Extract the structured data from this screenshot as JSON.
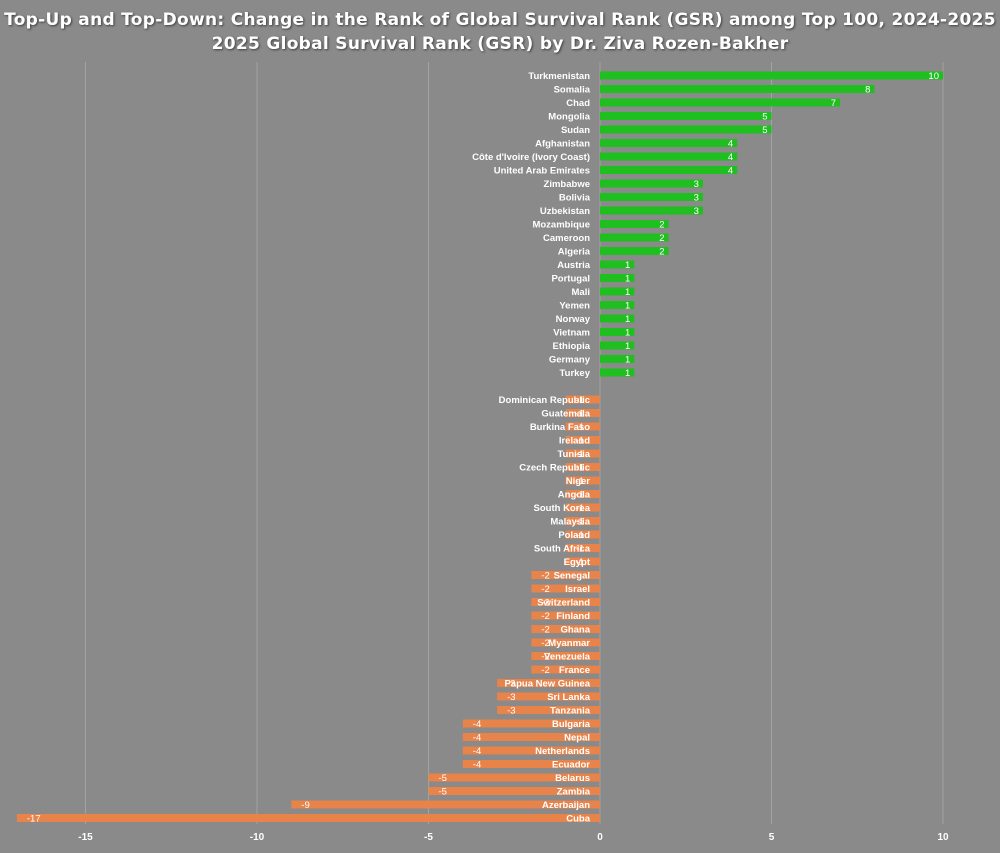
{
  "title": "Top-Up and Top-Down: Change in the Rank of Global Survival Rank (GSR) among Top 100,  2024-2025",
  "subtitle": "2025 Global Survival Rank (GSR) by Dr. Ziva Rozen-Bakher",
  "colors": {
    "background": "#8a8a8a",
    "positive": "#1fbf1f",
    "negative": "#e8834a",
    "text": "#ffffff",
    "grid": "#a3a3a3"
  },
  "chart_data": {
    "type": "bar",
    "orientation": "horizontal",
    "title": "Top-Up and Top-Down: Change in the Rank of Global Survival Rank (GSR) among Top 100,  2024-2025",
    "subtitle": "2025 Global Survival Rank (GSR) by Dr. Ziva Rozen-Bakher",
    "xlim": [
      -17,
      10
    ],
    "xticks": [
      -15,
      -10,
      -5,
      0,
      5,
      10
    ],
    "grid": true,
    "legend": "none",
    "categories": [
      "Turkmenistan",
      "Somalia",
      "Chad",
      "Mongolia",
      "Sudan",
      "Afghanistan",
      "Côte d'Ivoire (Ivory Coast)",
      "United Arab Emirates",
      "Zimbabwe",
      "Bolivia",
      "Uzbekistan",
      "Mozambique",
      "Cameroon",
      "Algeria",
      "Austria",
      "Portugal",
      "Mali",
      "Yemen",
      "Norway",
      "Vietnam",
      "Ethiopia",
      "Germany",
      "Turkey",
      "",
      "Dominican Republic",
      "Guatemala",
      "Burkina Faso",
      "Ireland",
      "Tunisia",
      "Czech Republic",
      "Niger",
      "Angola",
      "South Korea",
      "Malaysia",
      "Poland",
      "South Africa",
      "Egypt",
      "Senegal",
      "Israel",
      "Switzerland",
      "Finland",
      "Ghana",
      "Myanmar",
      "Venezuela",
      "France",
      "Papua New Guinea",
      "Sri Lanka",
      "Tanzania",
      "Bulgaria",
      "Nepal",
      "Netherlands",
      "Ecuador",
      "Belarus",
      "Zambia",
      "Azerbaijan",
      "Cuba"
    ],
    "values": [
      10,
      8,
      7,
      5,
      5,
      4,
      4,
      4,
      3,
      3,
      3,
      2,
      2,
      2,
      1,
      1,
      1,
      1,
      1,
      1,
      1,
      1,
      1,
      null,
      -1,
      -1,
      -1,
      -1,
      -1,
      -1,
      -1,
      -1,
      -1,
      -1,
      -1,
      -1,
      -1,
      -2,
      -2,
      -2,
      -2,
      -2,
      -2,
      -2,
      -2,
      -3,
      -3,
      -3,
      -4,
      -4,
      -4,
      -4,
      -5,
      -5,
      -9,
      -17
    ],
    "value_labels": [
      "10",
      "8",
      "7",
      "5",
      "5",
      "4",
      "4",
      "4",
      "3",
      "3",
      "3",
      "2",
      "2",
      "2",
      "1",
      "1",
      "1",
      "1",
      "1",
      "1",
      "1",
      "1",
      "1",
      "",
      "-1",
      "-1",
      "-1",
      "-1",
      "-1",
      "-1",
      "-1",
      "-1",
      "-1",
      "-1",
      "-1",
      "-1",
      "-1",
      "-2",
      "-2",
      "-2",
      "-2",
      "-2",
      "-2",
      "-2",
      "-2",
      "-3",
      "-3",
      "-3",
      "-4",
      "-4",
      "-4",
      "-4",
      "-5",
      "-5",
      "-9",
      "-17"
    ]
  }
}
